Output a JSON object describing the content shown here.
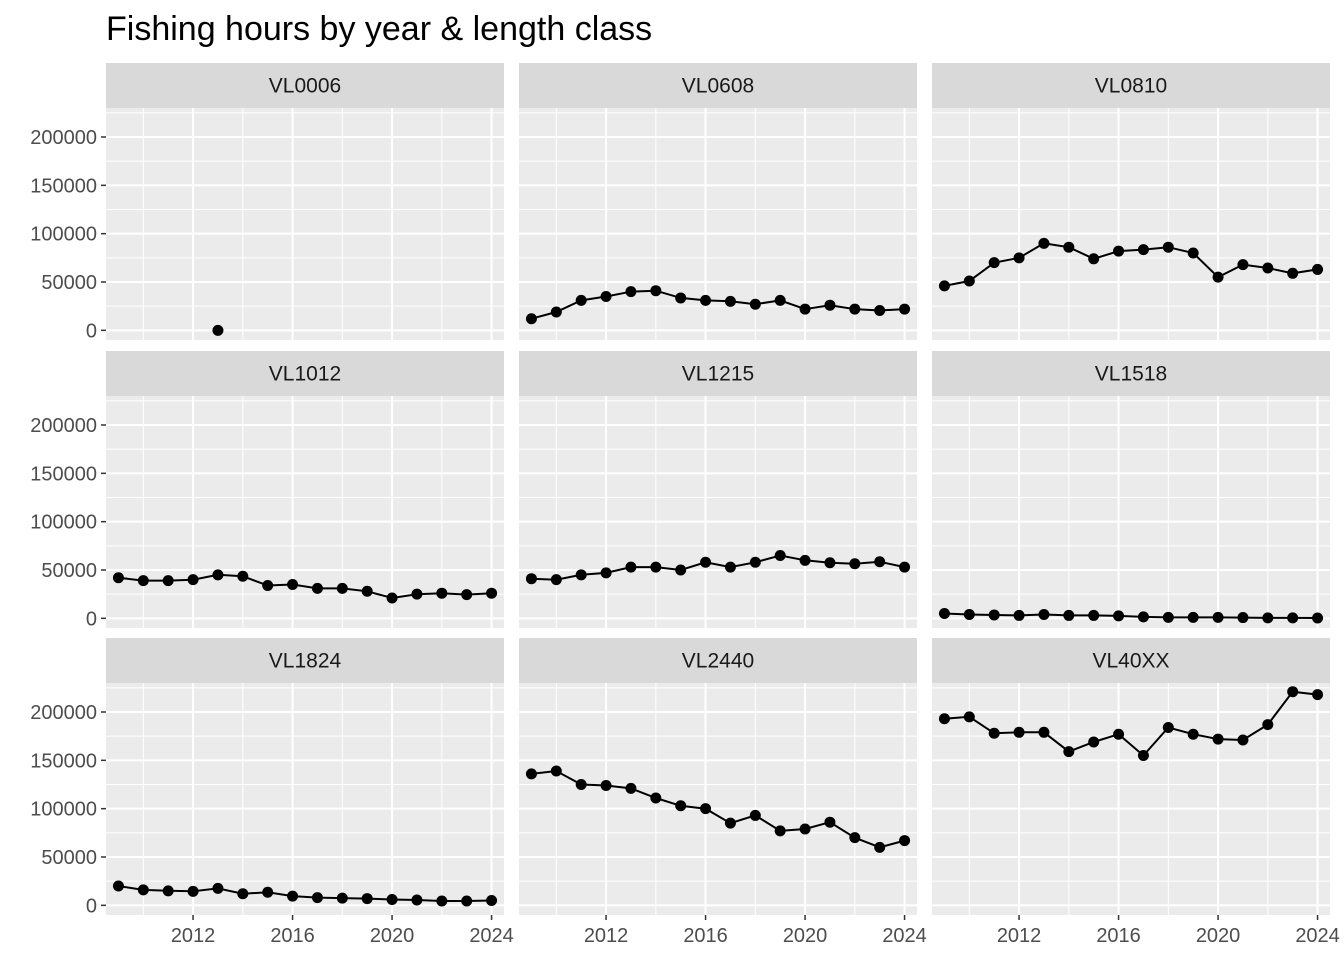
{
  "chart_data": {
    "type": "line",
    "title": "Fishing hours by year & length class",
    "xlabel": "",
    "ylabel": "",
    "facet_layout": "3x3",
    "grid": true,
    "legend": "none",
    "xlim": [
      2008.5,
      2024.5
    ],
    "ylim": [
      -10000,
      230000
    ],
    "xticks": [
      2012,
      2016,
      2020,
      2024
    ],
    "xtick_labels": [
      "2012",
      "2016",
      "2020",
      "2024"
    ],
    "yticks": [
      0,
      50000,
      100000,
      150000,
      200000
    ],
    "ytick_labels": [
      "0",
      "50000",
      "100000",
      "150000",
      "200000"
    ],
    "colors": {
      "panel_bg": "#ebebeb",
      "strip_bg": "#d9d9d9",
      "grid": "#ffffff",
      "line": "#000000",
      "point": "#000000",
      "tick": "#333333"
    },
    "panels": [
      {
        "name": "VL0006",
        "x": [
          2013
        ],
        "y": [
          0
        ]
      },
      {
        "name": "VL0608",
        "x": [
          2009,
          2010,
          2011,
          2012,
          2013,
          2014,
          2015,
          2016,
          2017,
          2018,
          2019,
          2020,
          2021,
          2022,
          2023,
          2024
        ],
        "y": [
          12000,
          19000,
          31000,
          35000,
          40000,
          41000,
          33500,
          31000,
          30000,
          27000,
          31000,
          22000,
          26000,
          22000,
          20500,
          22000
        ]
      },
      {
        "name": "VL0810",
        "x": [
          2009,
          2010,
          2011,
          2012,
          2013,
          2014,
          2015,
          2016,
          2017,
          2018,
          2019,
          2020,
          2021,
          2022,
          2023,
          2024
        ],
        "y": [
          46000,
          51000,
          70000,
          75000,
          90000,
          86000,
          74000,
          82000,
          83500,
          86000,
          80000,
          55000,
          68000,
          64500,
          59000,
          63000
        ]
      },
      {
        "name": "VL1012",
        "x": [
          2009,
          2010,
          2011,
          2012,
          2013,
          2014,
          2015,
          2016,
          2017,
          2018,
          2019,
          2020,
          2021,
          2022,
          2023,
          2024
        ],
        "y": [
          42000,
          39000,
          39000,
          40000,
          45000,
          43500,
          34000,
          35000,
          31000,
          31000,
          28000,
          21000,
          25000,
          26000,
          24500,
          26000
        ]
      },
      {
        "name": "VL1215",
        "x": [
          2009,
          2010,
          2011,
          2012,
          2013,
          2014,
          2015,
          2016,
          2017,
          2018,
          2019,
          2020,
          2021,
          2022,
          2023,
          2024
        ],
        "y": [
          41000,
          40000,
          45000,
          47000,
          53000,
          53000,
          50000,
          58000,
          53000,
          58000,
          65000,
          60000,
          57500,
          56500,
          58500,
          53000
        ]
      },
      {
        "name": "VL1518",
        "x": [
          2009,
          2010,
          2011,
          2012,
          2013,
          2014,
          2015,
          2016,
          2017,
          2018,
          2019,
          2020,
          2021,
          2022,
          2023,
          2024
        ],
        "y": [
          5000,
          4000,
          3500,
          3000,
          4000,
          3000,
          3000,
          2500,
          1500,
          1000,
          1000,
          1000,
          800,
          500,
          500,
          300
        ]
      },
      {
        "name": "VL1824",
        "x": [
          2009,
          2010,
          2011,
          2012,
          2013,
          2014,
          2015,
          2016,
          2017,
          2018,
          2019,
          2020,
          2021,
          2022,
          2023,
          2024
        ],
        "y": [
          20000,
          16000,
          15000,
          14500,
          17500,
          12000,
          13500,
          9500,
          8000,
          7500,
          7000,
          6000,
          5500,
          4500,
          4500,
          5000
        ]
      },
      {
        "name": "VL2440",
        "x": [
          2009,
          2010,
          2011,
          2012,
          2013,
          2014,
          2015,
          2016,
          2017,
          2018,
          2019,
          2020,
          2021,
          2022,
          2023,
          2024
        ],
        "y": [
          136000,
          139000,
          125000,
          124000,
          121000,
          111000,
          103000,
          100000,
          85000,
          93000,
          77000,
          79000,
          86000,
          70000,
          60000,
          67000
        ]
      },
      {
        "name": "VL40XX",
        "x": [
          2009,
          2010,
          2011,
          2012,
          2013,
          2014,
          2015,
          2016,
          2017,
          2018,
          2019,
          2020,
          2021,
          2022,
          2023,
          2024
        ],
        "y": [
          193000,
          195000,
          178000,
          179000,
          179000,
          159000,
          169000,
          177000,
          155000,
          184000,
          177000,
          172000,
          171000,
          187000,
          221000,
          218000
        ]
      }
    ]
  }
}
